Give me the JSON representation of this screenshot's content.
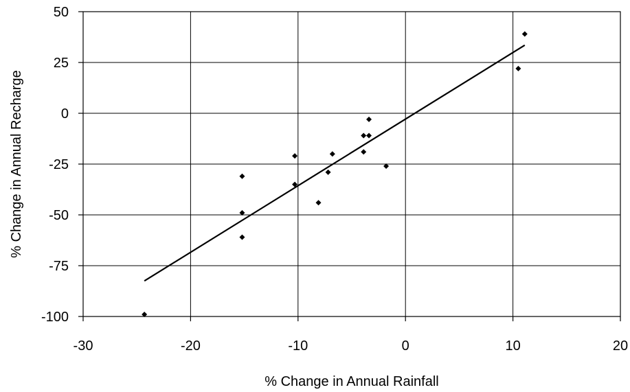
{
  "chart_data": {
    "type": "scatter",
    "title": "",
    "xlabel": "% Change in Annual Rainfall",
    "ylabel": "% Change in Annual Recharge",
    "xlim": [
      -30,
      20
    ],
    "ylim": [
      -100,
      50
    ],
    "xticks": [
      -30,
      -20,
      -10,
      0,
      10,
      20
    ],
    "yticks": [
      -100,
      -75,
      -50,
      -25,
      0,
      25,
      50
    ],
    "grid": true,
    "legend": "none",
    "points": [
      {
        "x": -24.3,
        "y": -99
      },
      {
        "x": -15.2,
        "y": -31
      },
      {
        "x": -15.2,
        "y": -49
      },
      {
        "x": -15.2,
        "y": -61
      },
      {
        "x": -10.3,
        "y": -21
      },
      {
        "x": -10.3,
        "y": -35
      },
      {
        "x": -8.1,
        "y": -44
      },
      {
        "x": -7.2,
        "y": -29
      },
      {
        "x": -6.8,
        "y": -20
      },
      {
        "x": -3.9,
        "y": -11
      },
      {
        "x": -3.9,
        "y": -19
      },
      {
        "x": -3.4,
        "y": -3
      },
      {
        "x": -3.4,
        "y": -11
      },
      {
        "x": -1.8,
        "y": -26
      },
      {
        "x": 10.5,
        "y": 22
      },
      {
        "x": 11.1,
        "y": 39
      }
    ],
    "trendline": {
      "x": [
        -24.3,
        11.1
      ],
      "y": [
        -82.5,
        33.5
      ]
    },
    "colors": {
      "marker": "#000000",
      "line": "#000000",
      "grid": "#000000"
    }
  }
}
